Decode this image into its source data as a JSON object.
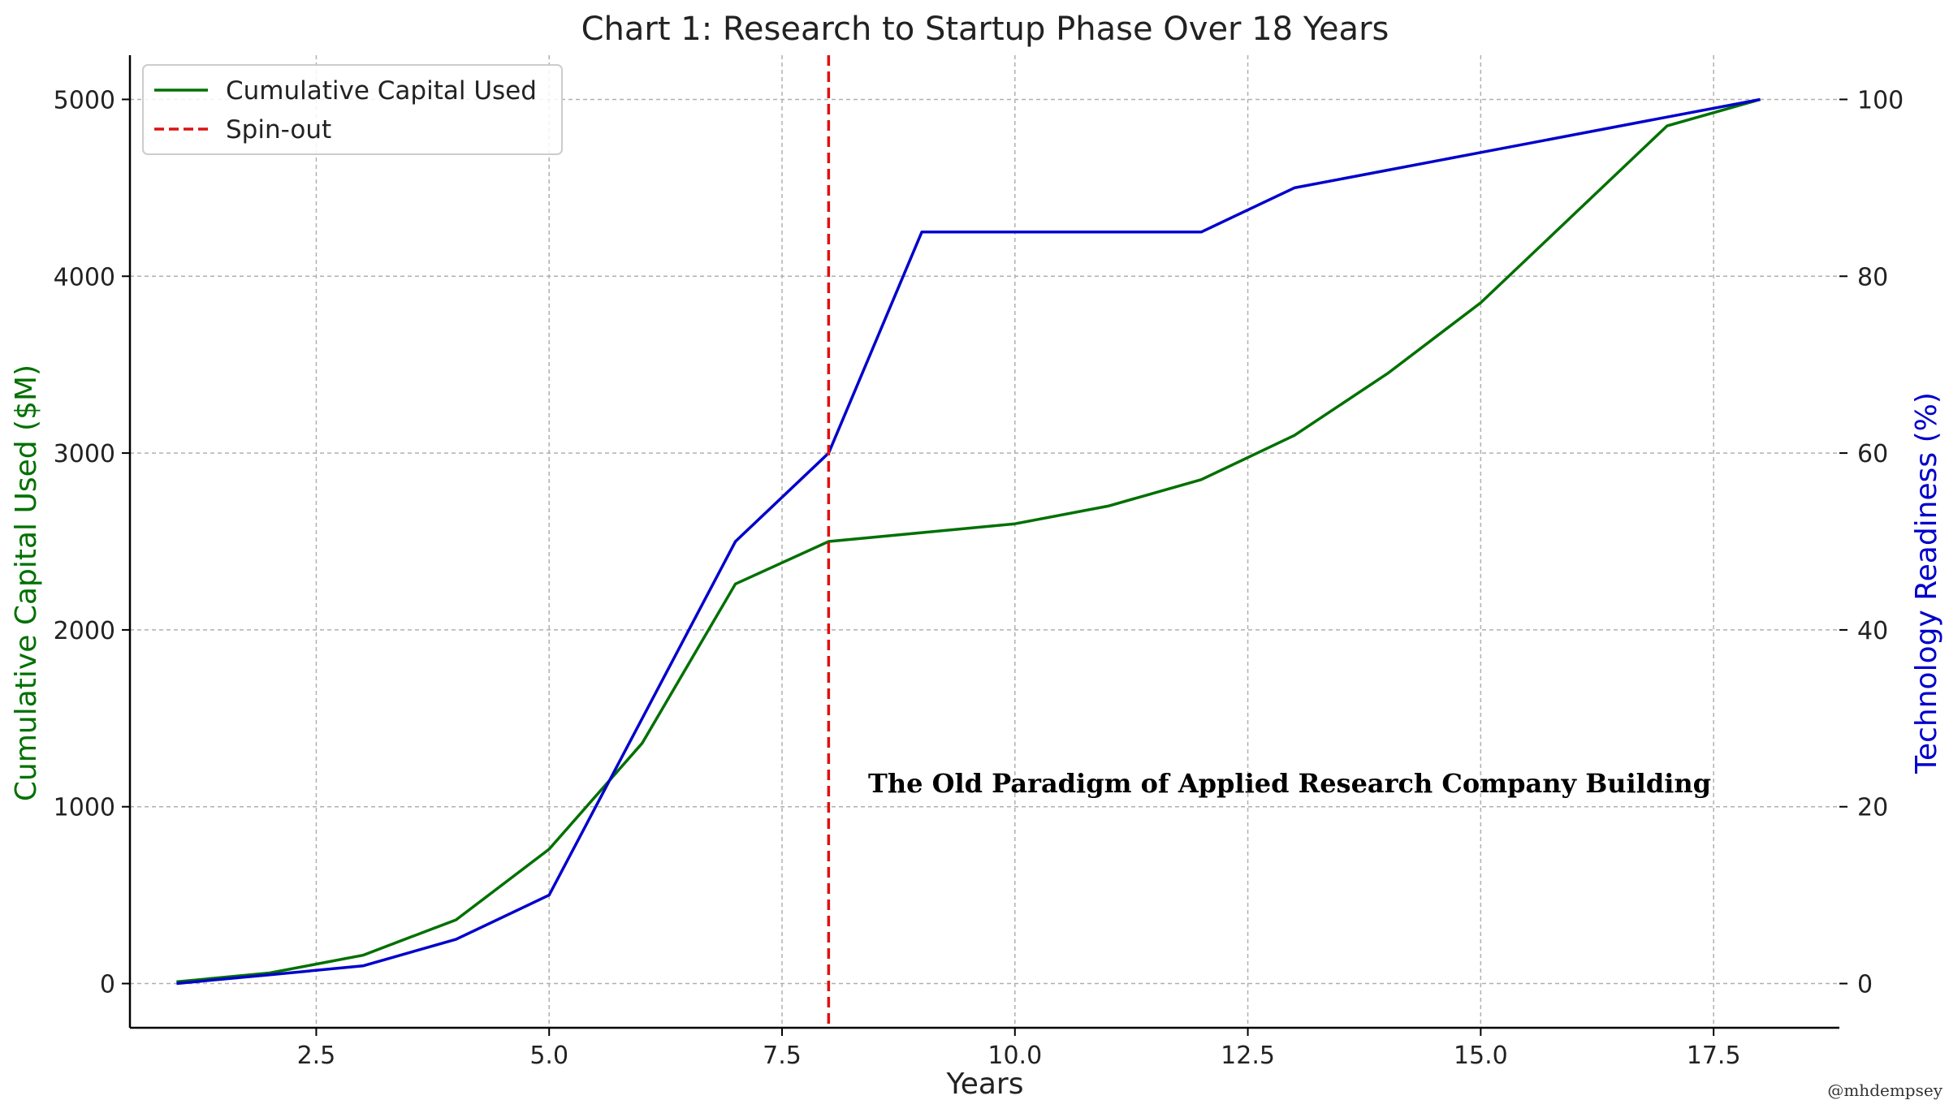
{
  "chart_data": {
    "type": "line",
    "title": "Chart 1: Research to Startup Phase Over 18 Years",
    "xlabel": "Years",
    "ylabel_left": "Cumulative Capital Used ($M)",
    "ylabel_right": "Technology Readiness (%)",
    "xlim": [
      0.5,
      18.85
    ],
    "ylim_left": [
      -250,
      5250
    ],
    "ylim_right": [
      -5,
      105
    ],
    "x_ticks": [
      2.5,
      5.0,
      7.5,
      10.0,
      12.5,
      15.0,
      17.5
    ],
    "x_tick_labels": [
      "2.5",
      "5.0",
      "7.5",
      "10.0",
      "12.5",
      "15.0",
      "17.5"
    ],
    "y_left_ticks": [
      0,
      1000,
      2000,
      3000,
      4000,
      5000
    ],
    "y_left_tick_labels": [
      "0",
      "1000",
      "2000",
      "3000",
      "4000",
      "5000"
    ],
    "y_right_ticks": [
      0,
      20,
      40,
      60,
      80,
      100
    ],
    "y_right_tick_labels": [
      "0",
      "20",
      "40",
      "60",
      "80",
      "100"
    ],
    "grid": true,
    "legend_position": "top-left",
    "x": [
      1,
      2,
      3,
      4,
      5,
      6,
      7,
      8,
      9,
      10,
      11,
      12,
      13,
      14,
      15,
      16,
      17,
      18
    ],
    "series": [
      {
        "name": "Cumulative Capital Used",
        "axis": "left",
        "color": "#007000",
        "values": [
          10,
          60,
          160,
          360,
          760,
          1360,
          2260,
          2500,
          2550,
          2600,
          2700,
          2850,
          3100,
          3450,
          3850,
          4350,
          4850,
          5000
        ]
      },
      {
        "axis": "right",
        "color": "#0000cc",
        "values": [
          0,
          1,
          2,
          5,
          10,
          30,
          50,
          60,
          85,
          85,
          85,
          85,
          90,
          92,
          94,
          96,
          98,
          100
        ]
      }
    ],
    "vline": {
      "name": "Spin-out",
      "x": 8,
      "color": "#dd1111",
      "style": "dashed"
    },
    "annotation": "The Old Paradigm of Applied Research Company Building",
    "watermark": "@mhdempsey",
    "colors": {
      "left_axis_label": "#007000",
      "right_axis_label": "#0000cc",
      "grid": "#b0b0b0",
      "axis": "#000000",
      "text": "#222222"
    }
  }
}
